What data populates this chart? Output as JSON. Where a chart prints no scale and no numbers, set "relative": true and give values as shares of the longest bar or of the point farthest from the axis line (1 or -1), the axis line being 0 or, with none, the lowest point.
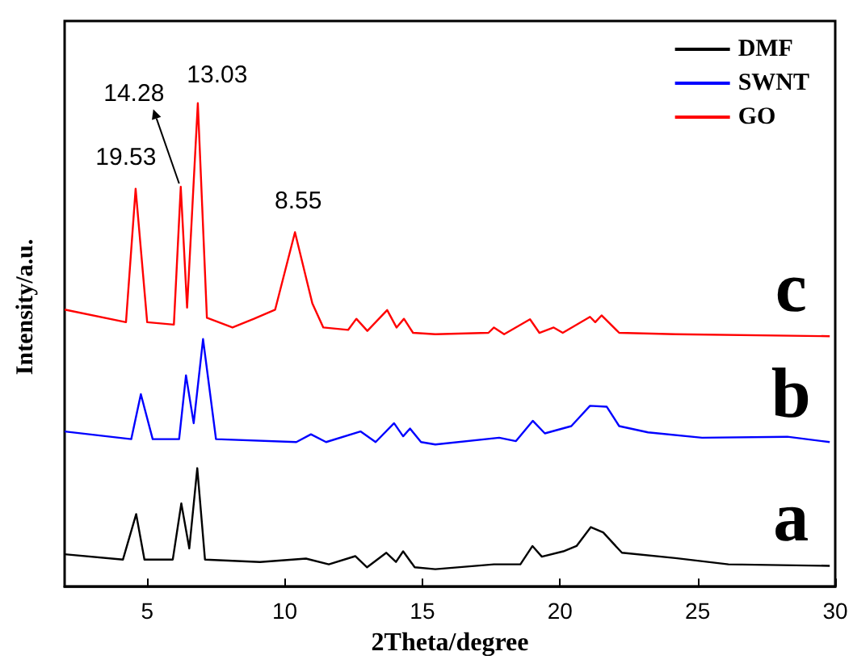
{
  "chart_data": {
    "type": "line",
    "relative": true,
    "xlabel": "2Theta/degree",
    "ylabel": "Intensity/a.u.",
    "xlim": [
      2,
      30
    ],
    "xticks": [
      5,
      10,
      15,
      20,
      25,
      30
    ],
    "tick_labels": "x",
    "legend": "top right",
    "grid": false,
    "marker": "none",
    "line_style": "solid",
    "series": [
      {
        "name": "DMF",
        "color": "#000000",
        "x": [
          2.0,
          4.12,
          4.6,
          4.9,
          5.93,
          6.24,
          6.53,
          6.82,
          7.1,
          9.1,
          10.77,
          11.6,
          12.56,
          12.99,
          13.69,
          14.04,
          14.3,
          14.72,
          15.47,
          17.6,
          18.56,
          19.0,
          19.34,
          20.12,
          20.6,
          21.12,
          21.57,
          22.25,
          24.19,
          26.12,
          29.8
        ],
        "values": [
          0.067,
          0.056,
          0.15,
          0.056,
          0.056,
          0.172,
          0.079,
          0.245,
          0.056,
          0.051,
          0.058,
          0.046,
          0.063,
          0.04,
          0.07,
          0.051,
          0.073,
          0.04,
          0.036,
          0.046,
          0.046,
          0.084,
          0.062,
          0.073,
          0.084,
          0.123,
          0.112,
          0.07,
          0.059,
          0.046,
          0.043
        ]
      },
      {
        "name": "SWNT",
        "color": "#0000ff",
        "x": [
          2.0,
          4.42,
          4.77,
          5.2,
          6.16,
          6.41,
          6.69,
          7.03,
          7.5,
          10.42,
          10.95,
          11.5,
          12.75,
          13.3,
          13.97,
          14.3,
          14.55,
          14.95,
          15.47,
          17.79,
          18.4,
          19.01,
          19.45,
          20.41,
          21.09,
          21.7,
          22.15,
          23.2,
          25.16,
          28.26,
          29.8
        ],
        "values": [
          0.321,
          0.305,
          0.398,
          0.305,
          0.305,
          0.437,
          0.338,
          0.512,
          0.305,
          0.299,
          0.315,
          0.299,
          0.321,
          0.299,
          0.338,
          0.311,
          0.327,
          0.299,
          0.294,
          0.308,
          0.301,
          0.343,
          0.317,
          0.332,
          0.374,
          0.372,
          0.332,
          0.319,
          0.308,
          0.31,
          0.299
        ]
      },
      {
        "name": "GO",
        "color": "#ff0000",
        "x": [
          2.0,
          4.23,
          4.58,
          5.0,
          5.97,
          6.22,
          6.45,
          6.84,
          7.17,
          8.1,
          8.88,
          9.65,
          10.37,
          11.0,
          11.4,
          12.3,
          12.6,
          13.0,
          13.72,
          14.06,
          14.33,
          14.66,
          15.47,
          17.4,
          17.6,
          17.97,
          18.91,
          19.25,
          19.77,
          20.1,
          21.09,
          21.28,
          21.51,
          22.15,
          24.2,
          29.8
        ],
        "values": [
          0.573,
          0.547,
          0.823,
          0.547,
          0.542,
          0.827,
          0.577,
          1,
          0.556,
          0.536,
          0.554,
          0.573,
          0.733,
          0.586,
          0.536,
          0.531,
          0.554,
          0.529,
          0.572,
          0.536,
          0.554,
          0.525,
          0.522,
          0.525,
          0.536,
          0.522,
          0.553,
          0.525,
          0.536,
          0.525,
          0.558,
          0.547,
          0.561,
          0.525,
          0.522,
          0.518
        ]
      }
    ],
    "annotations": [
      {
        "text": "19.53",
        "x": 4.58,
        "y": 0.823
      },
      {
        "text": "14.28",
        "x": 6.22,
        "y": 0.827
      },
      {
        "text": "13.03",
        "x": 6.84,
        "y": 1
      },
      {
        "text": "8.55",
        "x": 10.37,
        "y": 0.733
      },
      "c",
      "b",
      "a"
    ]
  }
}
